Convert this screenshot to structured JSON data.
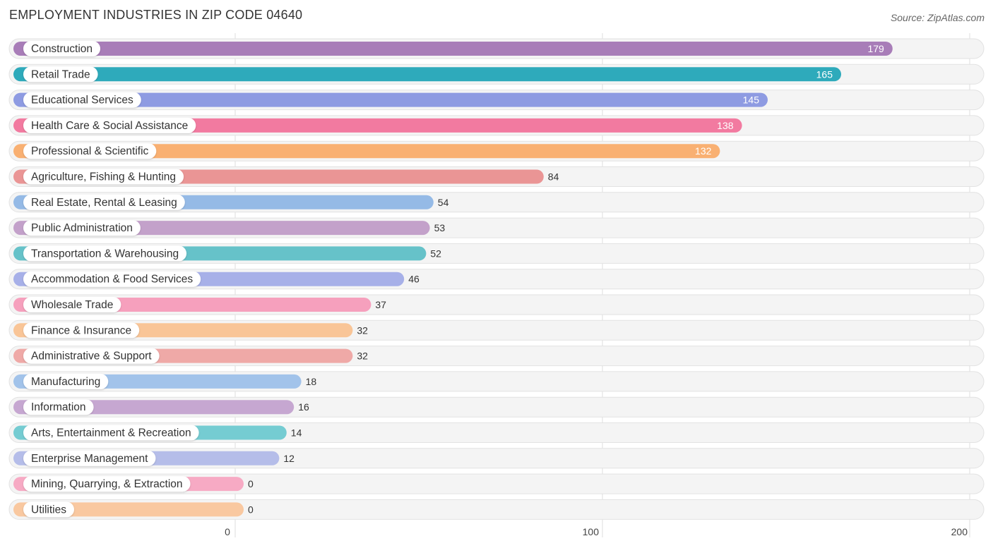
{
  "title": "EMPLOYMENT INDUSTRIES IN ZIP CODE 04640",
  "source": "Source: ZipAtlas.com",
  "chart_data": {
    "type": "bar",
    "orientation": "horizontal",
    "title": "EMPLOYMENT INDUSTRIES IN ZIP CODE 04640",
    "xlabel": "",
    "ylabel": "",
    "xlim": [
      0,
      200
    ],
    "xticks": [
      0,
      100,
      200
    ],
    "grid": true,
    "categories": [
      "Construction",
      "Retail Trade",
      "Educational Services",
      "Health Care & Social Assistance",
      "Professional & Scientific",
      "Agriculture, Fishing & Hunting",
      "Real Estate, Rental & Leasing",
      "Public Administration",
      "Transportation & Warehousing",
      "Accommodation & Food Services",
      "Wholesale Trade",
      "Finance & Insurance",
      "Administrative & Support",
      "Manufacturing",
      "Information",
      "Arts, Entertainment & Recreation",
      "Enterprise Management",
      "Mining, Quarrying, & Extraction",
      "Utilities"
    ],
    "values": [
      179,
      165,
      145,
      138,
      132,
      84,
      54,
      53,
      52,
      46,
      37,
      32,
      32,
      18,
      16,
      14,
      12,
      0,
      0
    ],
    "colors": [
      "#a87db8",
      "#2eaabb",
      "#8e9be2",
      "#f27aa0",
      "#f9b072",
      "#ea9595",
      "#95bae6",
      "#c3a1ca",
      "#66c2c9",
      "#a7b0e8",
      "#f6a0bd",
      "#f9c597",
      "#efa9a7",
      "#a2c3ea",
      "#c6a7d1",
      "#75ccd2",
      "#b5bde9",
      "#f7aac4",
      "#f9c8a0"
    ]
  }
}
